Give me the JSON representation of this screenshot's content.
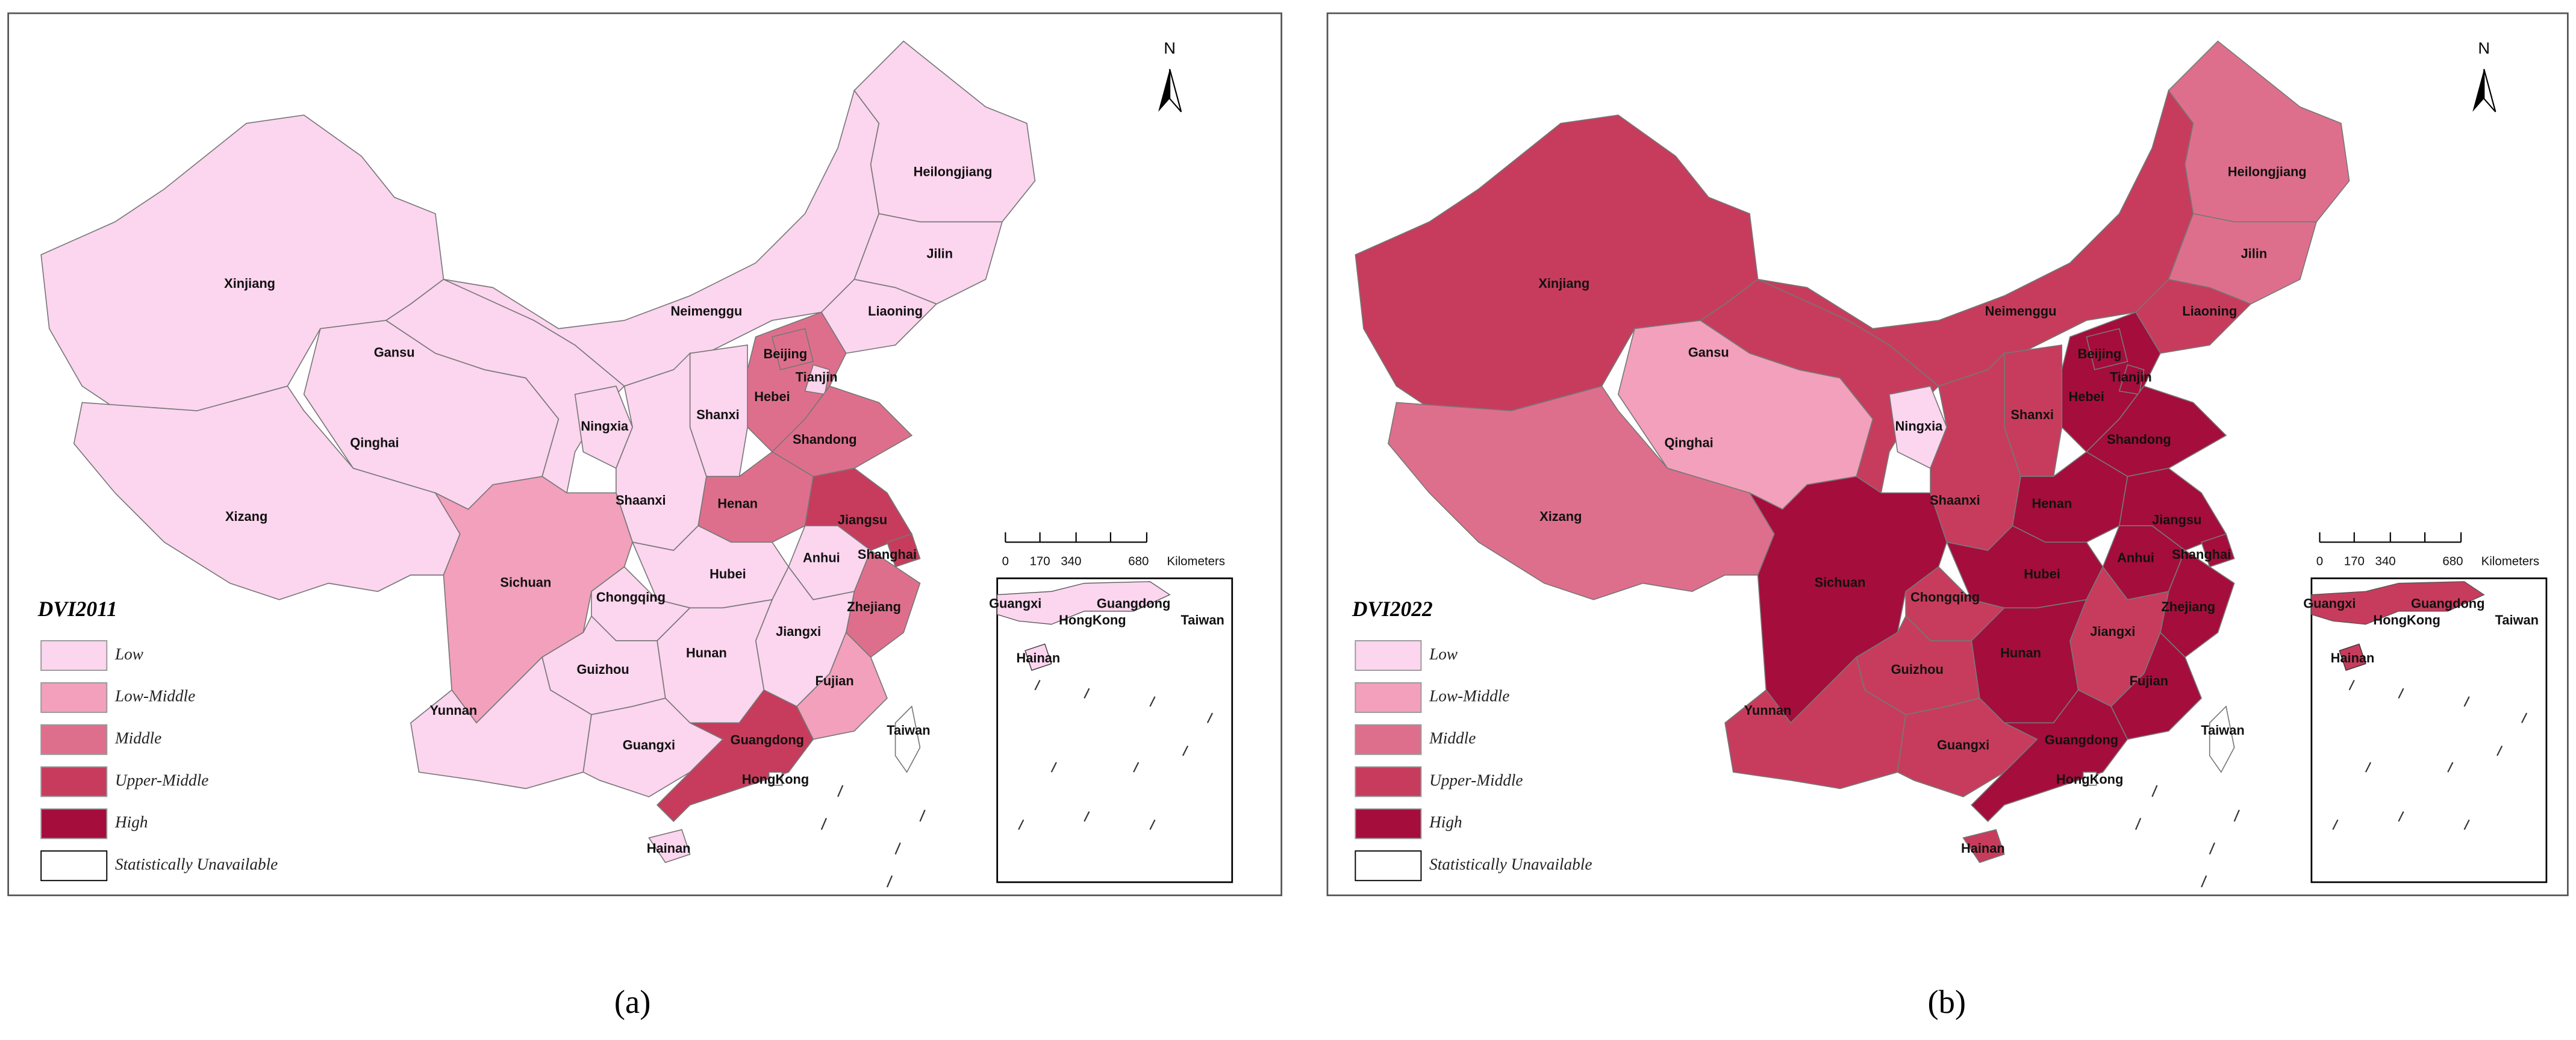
{
  "legend": [
    {
      "label": "Low",
      "color": "#fcd5ee"
    },
    {
      "label": "Low-Middle",
      "color": "#f2a0bb"
    },
    {
      "label": "Middle",
      "color": "#de6f8c"
    },
    {
      "label": "Upper-Middle",
      "color": "#c73c5c"
    },
    {
      "label": "High",
      "color": "#a50d3c"
    },
    {
      "label": "Statistically Unavailable",
      "color": "#ffffff"
    }
  ],
  "north": "N",
  "scale_labels": [
    "0",
    "170",
    "340",
    "680",
    "Kilometers"
  ],
  "inset_labels": [
    "Guangxi",
    "Guangdong",
    "HongKong",
    "Taiwan",
    "Hainan"
  ],
  "maps": [
    {
      "title": "DVI2011",
      "caption": "(a)",
      "regions": [
        {
          "name": "Xinjiang",
          "class": "Low"
        },
        {
          "name": "Xizang",
          "class": "Low"
        },
        {
          "name": "Qinghai",
          "class": "Low"
        },
        {
          "name": "Gansu",
          "class": "Low"
        },
        {
          "name": "Neimenggu",
          "class": "Low"
        },
        {
          "name": "Heilongjiang",
          "class": "Low"
        },
        {
          "name": "Jilin",
          "class": "Low"
        },
        {
          "name": "Liaoning",
          "class": "Low"
        },
        {
          "name": "Hebei",
          "class": "Middle"
        },
        {
          "name": "Beijing",
          "class": "Middle"
        },
        {
          "name": "Tianjin",
          "class": "Low"
        },
        {
          "name": "Shanxi",
          "class": "Low"
        },
        {
          "name": "Shandong",
          "class": "Middle"
        },
        {
          "name": "Ningxia",
          "class": "Low"
        },
        {
          "name": "Shaanxi",
          "class": "Low"
        },
        {
          "name": "Henan",
          "class": "Middle"
        },
        {
          "name": "Jiangsu",
          "class": "Upper-Middle"
        },
        {
          "name": "Shanghai",
          "class": "Upper-Middle"
        },
        {
          "name": "Anhui",
          "class": "Low"
        },
        {
          "name": "Hubei",
          "class": "Low"
        },
        {
          "name": "Sichuan",
          "class": "Low-Middle"
        },
        {
          "name": "Chongqing",
          "class": "Low"
        },
        {
          "name": "Zhejiang",
          "class": "Middle"
        },
        {
          "name": "Jiangxi",
          "class": "Low"
        },
        {
          "name": "Hunan",
          "class": "Low"
        },
        {
          "name": "Guizhou",
          "class": "Low"
        },
        {
          "name": "Fujian",
          "class": "Low-Middle"
        },
        {
          "name": "Yunnan",
          "class": "Low"
        },
        {
          "name": "Guangxi",
          "class": "Low"
        },
        {
          "name": "Guangdong",
          "class": "Upper-Middle"
        },
        {
          "name": "Hainan",
          "class": "Low"
        },
        {
          "name": "Taiwan",
          "class": "Statistically Unavailable"
        },
        {
          "name": "HongKong",
          "class": "Statistically Unavailable"
        }
      ]
    },
    {
      "title": "DVI2022",
      "caption": "(b)",
      "regions": [
        {
          "name": "Xinjiang",
          "class": "Upper-Middle"
        },
        {
          "name": "Xizang",
          "class": "Middle"
        },
        {
          "name": "Qinghai",
          "class": "Low-Middle"
        },
        {
          "name": "Gansu",
          "class": "Upper-Middle"
        },
        {
          "name": "Neimenggu",
          "class": "Upper-Middle"
        },
        {
          "name": "Heilongjiang",
          "class": "Middle"
        },
        {
          "name": "Jilin",
          "class": "Middle"
        },
        {
          "name": "Liaoning",
          "class": "Upper-Middle"
        },
        {
          "name": "Hebei",
          "class": "High"
        },
        {
          "name": "Beijing",
          "class": "High"
        },
        {
          "name": "Tianjin",
          "class": "High"
        },
        {
          "name": "Shanxi",
          "class": "Upper-Middle"
        },
        {
          "name": "Shandong",
          "class": "High"
        },
        {
          "name": "Ningxia",
          "class": "Low"
        },
        {
          "name": "Shaanxi",
          "class": "Upper-Middle"
        },
        {
          "name": "Henan",
          "class": "High"
        },
        {
          "name": "Jiangsu",
          "class": "High"
        },
        {
          "name": "Shanghai",
          "class": "High"
        },
        {
          "name": "Anhui",
          "class": "High"
        },
        {
          "name": "Hubei",
          "class": "High"
        },
        {
          "name": "Sichuan",
          "class": "High"
        },
        {
          "name": "Chongqing",
          "class": "Upper-Middle"
        },
        {
          "name": "Zhejiang",
          "class": "High"
        },
        {
          "name": "Jiangxi",
          "class": "Upper-Middle"
        },
        {
          "name": "Hunan",
          "class": "High"
        },
        {
          "name": "Guizhou",
          "class": "Upper-Middle"
        },
        {
          "name": "Fujian",
          "class": "High"
        },
        {
          "name": "Yunnan",
          "class": "Upper-Middle"
        },
        {
          "name": "Guangxi",
          "class": "Upper-Middle"
        },
        {
          "name": "Guangdong",
          "class": "High"
        },
        {
          "name": "Hainan",
          "class": "Upper-Middle"
        },
        {
          "name": "Taiwan",
          "class": "Statistically Unavailable"
        },
        {
          "name": "HongKong",
          "class": "Statistically Unavailable"
        }
      ]
    }
  ]
}
